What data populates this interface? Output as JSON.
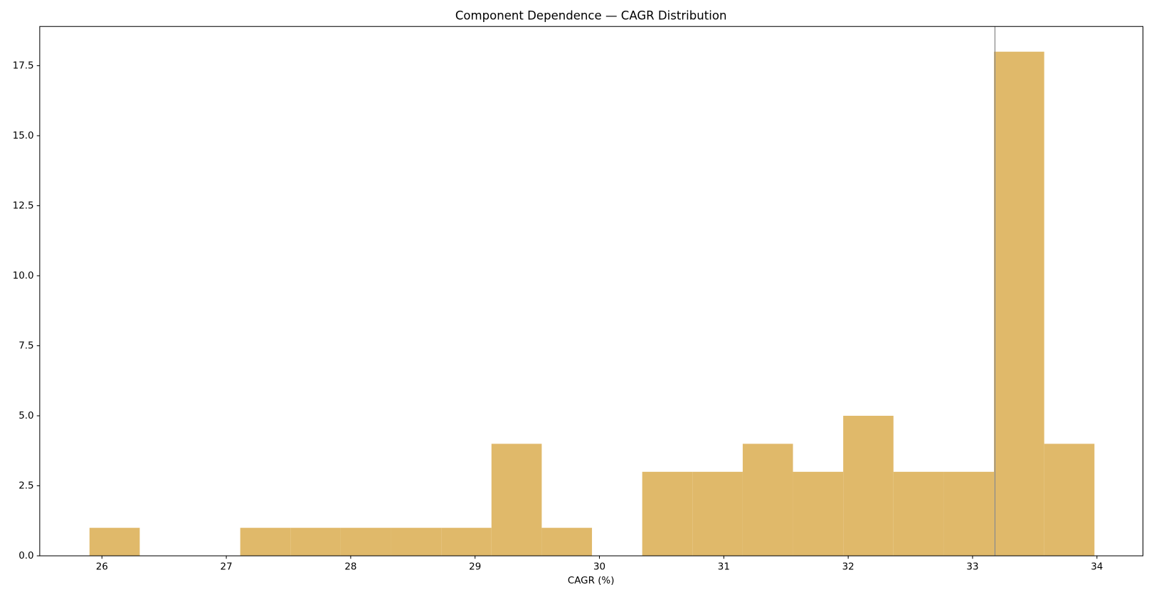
{
  "chart_data": {
    "type": "histogram",
    "title": "Component Dependence — CAGR Distribution",
    "x_label": "CAGR (%)",
    "bins": [
      25.9,
      26.304,
      26.708,
      27.112,
      27.516,
      27.92,
      28.324,
      28.728,
      29.132,
      29.536,
      29.94,
      30.344,
      30.748,
      31.152,
      31.556,
      31.96,
      32.364,
      32.768,
      33.172,
      33.576,
      33.98
    ],
    "values": [
      1,
      0,
      0,
      1,
      1,
      1,
      1,
      1,
      4,
      1,
      0,
      3,
      3,
      4,
      3,
      5,
      3,
      3,
      18,
      4
    ],
    "color": "#e0b96a",
    "vline": 33.18,
    "vline_color": "#888888",
    "xlim": [
      25.5,
      34.37
    ],
    "ylim": [
      0,
      18.9
    ],
    "xticks": [
      26,
      27,
      28,
      29,
      30,
      31,
      32,
      33,
      34
    ],
    "yticks": [
      {
        "value": 0,
        "label": "0.0"
      },
      {
        "value": 2.5,
        "label": "2.5"
      },
      {
        "value": 5,
        "label": "5.0"
      },
      {
        "value": 7.5,
        "label": "7.5"
      },
      {
        "value": 10,
        "label": "10.0"
      },
      {
        "value": 12.5,
        "label": "12.5"
      },
      {
        "value": 15,
        "label": "15.0"
      },
      {
        "value": 17.5,
        "label": "17.5"
      }
    ]
  }
}
